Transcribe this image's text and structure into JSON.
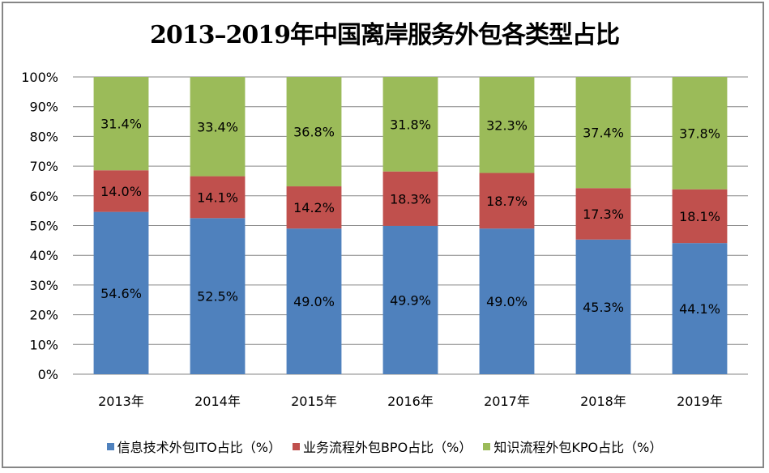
{
  "chart_data": {
    "type": "bar",
    "stacked": true,
    "percent": true,
    "title": "2013–2019年中国离岸服务外包各类型占比",
    "xlabel": "",
    "ylabel": "",
    "ylim": [
      0,
      100
    ],
    "yticks": [
      "0%",
      "10%",
      "20%",
      "30%",
      "40%",
      "50%",
      "60%",
      "70%",
      "80%",
      "90%",
      "100%"
    ],
    "categories": [
      "2013年",
      "2014年",
      "2015年",
      "2016年",
      "2017年",
      "2018年",
      "2019年"
    ],
    "series": [
      {
        "name": "信息技术外包ITO占比（%）",
        "color": "#4f81bd",
        "values": [
          54.6,
          52.5,
          49.0,
          49.9,
          49.0,
          45.3,
          44.1
        ],
        "labels": [
          "54.6%",
          "52.5%",
          "49.0%",
          "49.9%",
          "49.0%",
          "45.3%",
          "44.1%"
        ]
      },
      {
        "name": "业务流程外包BPO占比（%）",
        "color": "#c0504d",
        "values": [
          14.0,
          14.1,
          14.2,
          18.3,
          18.7,
          17.3,
          18.1
        ],
        "labels": [
          "14.0%",
          "14.1%",
          "14.2%",
          "18.3%",
          "18.7%",
          "17.3%",
          "18.1%"
        ]
      },
      {
        "name": "知识流程外包KPO占比（%）",
        "color": "#9bbb59",
        "values": [
          31.4,
          33.4,
          36.8,
          31.8,
          32.3,
          37.4,
          37.8
        ],
        "labels": [
          "31.4%",
          "33.4%",
          "36.8%",
          "31.8%",
          "32.3%",
          "37.4%",
          "37.8%"
        ]
      }
    ],
    "grid": true,
    "legend_position": "bottom"
  }
}
